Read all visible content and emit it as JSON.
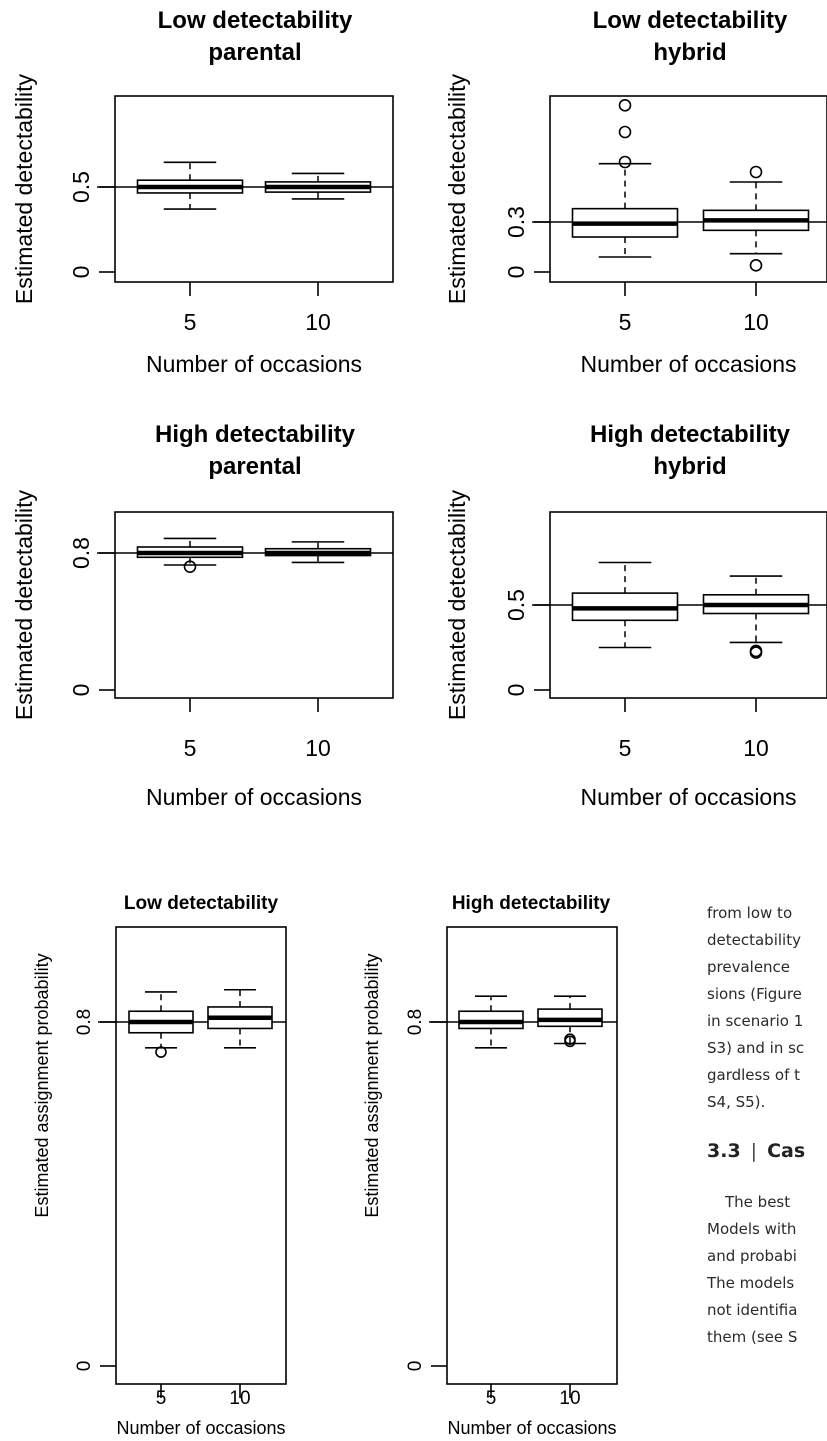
{
  "chart_data": [
    {
      "type": "box",
      "title": [
        "Low detectability",
        "parental"
      ],
      "xlabel": "Number of occasions",
      "ylabel": "Estimated detectability",
      "categories": [
        "5",
        "10"
      ],
      "yticks": [
        "0",
        "0.5"
      ],
      "ytick_values": [
        0,
        0.5
      ],
      "ylim": [
        -0.05,
        1.05
      ],
      "reference_line": 0.5,
      "boxes": [
        {
          "whisker_low": 0.37,
          "q1": 0.465,
          "median": 0.5,
          "q3": 0.54,
          "whisker_high": 0.645,
          "outliers": []
        },
        {
          "whisker_low": 0.43,
          "q1": 0.47,
          "median": 0.5,
          "q3": 0.53,
          "whisker_high": 0.58,
          "outliers": []
        }
      ]
    },
    {
      "type": "box",
      "title": [
        "Low detectability",
        "hybrid"
      ],
      "xlabel": "Number of occasions",
      "ylabel": "Estimated detectability",
      "categories": [
        "5",
        "10"
      ],
      "yticks": [
        "0",
        "0.3"
      ],
      "ytick_values": [
        0,
        0.3
      ],
      "ylim": [
        -0.05,
        1.05
      ],
      "reference_line": 0.3,
      "boxes": [
        {
          "whisker_low": 0.09,
          "q1": 0.21,
          "median": 0.29,
          "q3": 0.38,
          "whisker_high": 0.65,
          "outliers": [
            0.66,
            0.84,
            1.0
          ]
        },
        {
          "whisker_low": 0.11,
          "q1": 0.25,
          "median": 0.31,
          "q3": 0.37,
          "whisker_high": 0.54,
          "outliers": [
            0.6,
            0.04
          ]
        }
      ]
    },
    {
      "type": "box",
      "title": [
        "High detectability",
        "parental"
      ],
      "xlabel": "Number of occasions",
      "ylabel": "Estimated detectability",
      "categories": [
        "5",
        "10"
      ],
      "yticks": [
        "0",
        "0.8"
      ],
      "ytick_values": [
        0,
        0.8
      ],
      "ylim": [
        -0.05,
        1.05
      ],
      "reference_line": 0.8,
      "boxes": [
        {
          "whisker_low": 0.73,
          "q1": 0.775,
          "median": 0.8,
          "q3": 0.835,
          "whisker_high": 0.885,
          "outliers": [
            0.72
          ]
        },
        {
          "whisker_low": 0.745,
          "q1": 0.785,
          "median": 0.8,
          "q3": 0.825,
          "whisker_high": 0.865,
          "outliers": []
        }
      ]
    },
    {
      "type": "box",
      "title": [
        "High detectability",
        "hybrid"
      ],
      "xlabel": "Number of occasions",
      "ylabel": "Estimated detectability",
      "categories": [
        "5",
        "10"
      ],
      "yticks": [
        "0",
        "0.5"
      ],
      "ytick_values": [
        0,
        0.5
      ],
      "ylim": [
        -0.05,
        1.05
      ],
      "reference_line": 0.5,
      "boxes": [
        {
          "whisker_low": 0.25,
          "q1": 0.41,
          "median": 0.48,
          "q3": 0.57,
          "whisker_high": 0.75,
          "outliers": []
        },
        {
          "whisker_low": 0.28,
          "q1": 0.45,
          "median": 0.5,
          "q3": 0.56,
          "whisker_high": 0.67,
          "outliers": [
            0.23,
            0.22
          ]
        }
      ]
    },
    {
      "type": "box",
      "title": [
        "Low detectability"
      ],
      "xlabel": "Number of occasions",
      "ylabel": "Estimated assignment probability",
      "categories": [
        "5",
        "10"
      ],
      "yticks": [
        "0",
        "0.8"
      ],
      "ytick_values": [
        0,
        0.8
      ],
      "ylim": [
        -0.05,
        1.05
      ],
      "reference_line": 0.8,
      "boxes": [
        {
          "whisker_low": 0.74,
          "q1": 0.775,
          "median": 0.8,
          "q3": 0.825,
          "whisker_high": 0.87,
          "outliers": [
            0.73
          ]
        },
        {
          "whisker_low": 0.74,
          "q1": 0.785,
          "median": 0.81,
          "q3": 0.835,
          "whisker_high": 0.875,
          "outliers": []
        }
      ]
    },
    {
      "type": "box",
      "title": [
        "High detectability"
      ],
      "xlabel": "Number of occasions",
      "ylabel": "Estimated assignment probability",
      "categories": [
        "5",
        "10"
      ],
      "yticks": [
        "0",
        "0.8"
      ],
      "ytick_values": [
        0,
        0.8
      ],
      "ylim": [
        -0.05,
        1.05
      ],
      "reference_line": 0.8,
      "boxes": [
        {
          "whisker_low": 0.74,
          "q1": 0.785,
          "median": 0.8,
          "q3": 0.825,
          "whisker_high": 0.86,
          "outliers": []
        },
        {
          "whisker_low": 0.75,
          "q1": 0.79,
          "median": 0.805,
          "q3": 0.83,
          "whisker_high": 0.86,
          "outliers": [
            0.76,
            0.755
          ]
        }
      ]
    }
  ],
  "side_text": {
    "lines": [
      "from low to",
      "detectability",
      "prevalence",
      "sions (Figure",
      "in scenario 1",
      "S3) and in sc",
      "gardless of t",
      "S4, S5)."
    ],
    "section_number": "3.3",
    "section_sep": "|",
    "section_title": "Cas",
    "para_lines": [
      "The best",
      "Models with",
      "and probabi",
      "The models",
      "not identifia",
      "them (see S"
    ]
  }
}
